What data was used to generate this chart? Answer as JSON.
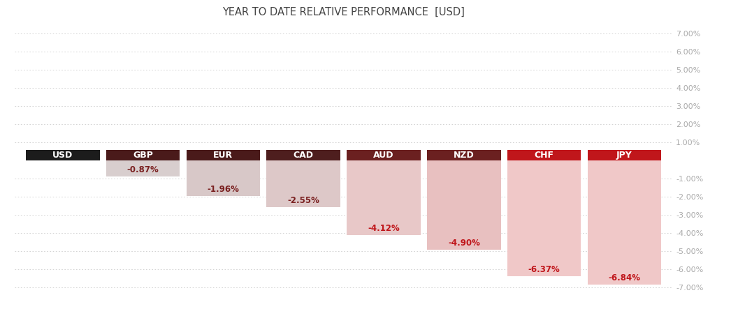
{
  "title": "YEAR TO DATE RELATIVE PERFORMANCE  [USD]",
  "categories": [
    "USD",
    "GBP",
    "EUR",
    "CAD",
    "AUD",
    "NZD",
    "CHF",
    "JPY"
  ],
  "values": [
    0,
    -0.87,
    -1.96,
    -2.55,
    -4.12,
    -4.9,
    -6.37,
    -6.84
  ],
  "labels": [
    "",
    "-0.87%",
    "-1.96%",
    "-2.55%",
    "-4.12%",
    "-4.90%",
    "-6.37%",
    "-6.84%"
  ],
  "header_colors": [
    "#1c1c1c",
    "#4a1a1a",
    "#4a1a1a",
    "#4e1e1e",
    "#6b2020",
    "#6b2020",
    "#c0161b",
    "#c0161b"
  ],
  "bar_colors": [
    "#000000",
    "#d8cece",
    "#d8c8c8",
    "#ddc8c8",
    "#e8c8c8",
    "#e8c0c0",
    "#f0c8c8",
    "#f0c8c8"
  ],
  "label_colors": [
    "#ffffff",
    "#7a2020",
    "#7a2020",
    "#7a2020",
    "#c0161b",
    "#c0161b",
    "#c0161b",
    "#c0161b"
  ],
  "ylim": [
    -7.5,
    7.5
  ],
  "yticks_pos": [
    7.0,
    6.0,
    5.0,
    4.0,
    3.0,
    2.0,
    1.0
  ],
  "yticks_neg": [
    -1.0,
    -2.0,
    -3.0,
    -4.0,
    -5.0,
    -6.0,
    -7.0
  ],
  "background_color": "#ffffff",
  "title_fontsize": 10.5,
  "bar_width": 0.92
}
